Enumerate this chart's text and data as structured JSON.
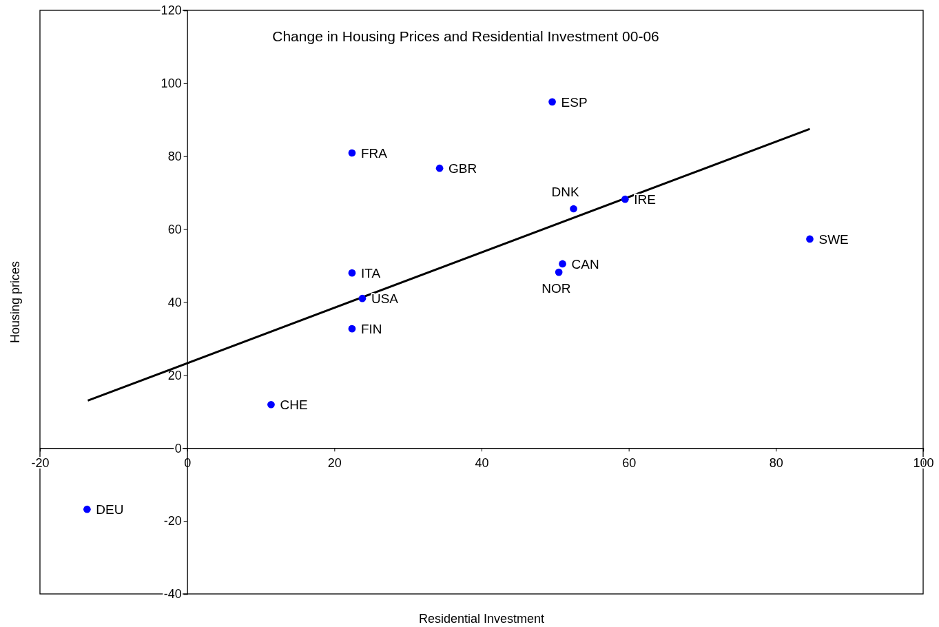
{
  "chart_data": {
    "type": "scatter",
    "title": "Change in Housing Prices and Residential Investment 00-06",
    "xlabel": "Residential Investment",
    "ylabel": "Housing prices",
    "xlim": [
      -20,
      100
    ],
    "xticks": [
      -20,
      0,
      20,
      40,
      60,
      80,
      100
    ],
    "ylim": [
      -40,
      120
    ],
    "yticks": [
      -40,
      -20,
      0,
      20,
      40,
      60,
      80,
      100,
      120
    ],
    "grid": false,
    "marker": "circle",
    "series": [
      {
        "color": "#0000ff",
        "x": [
          -13.6,
          11.4,
          22.4,
          23.8,
          22.4,
          22.4,
          34.3,
          49.6,
          52.5,
          59.5,
          51.0,
          50.5,
          84.6
        ],
        "values": [
          -16.8,
          11.9,
          32.7,
          41.0,
          48.0,
          80.9,
          76.7,
          94.9,
          65.6,
          68.2,
          50.5,
          48.2,
          57.3
        ]
      },
      {
        "type": "line",
        "color": "#000000",
        "line_style": "solid",
        "marker": "none",
        "x": [
          -13.5,
          84.6
        ],
        "values": [
          13.0,
          87.5
        ]
      }
    ],
    "annotations": [
      {
        "text": "DEU",
        "x": -13.6,
        "y": -16.8
      },
      {
        "text": "CHE",
        "x": 11.4,
        "y": 11.9
      },
      {
        "text": "FIN",
        "x": 22.4,
        "y": 32.7
      },
      {
        "text": "USA",
        "x": 23.8,
        "y": 41.0
      },
      {
        "text": "ITA",
        "x": 22.4,
        "y": 48.0
      },
      {
        "text": "FRA",
        "x": 22.4,
        "y": 80.9
      },
      {
        "text": "GBR",
        "x": 34.3,
        "y": 76.7
      },
      {
        "text": "ESP",
        "x": 49.6,
        "y": 94.9
      },
      {
        "text": "DNK",
        "x": 52.5,
        "y": 65.6
      },
      {
        "text": "IRE",
        "x": 59.5,
        "y": 68.2
      },
      {
        "text": "CAN",
        "x": 51.0,
        "y": 50.5
      },
      {
        "text": "NOR",
        "x": 50.5,
        "y": 48.2
      },
      {
        "text": "SWE",
        "x": 84.6,
        "y": 57.3
      }
    ]
  }
}
